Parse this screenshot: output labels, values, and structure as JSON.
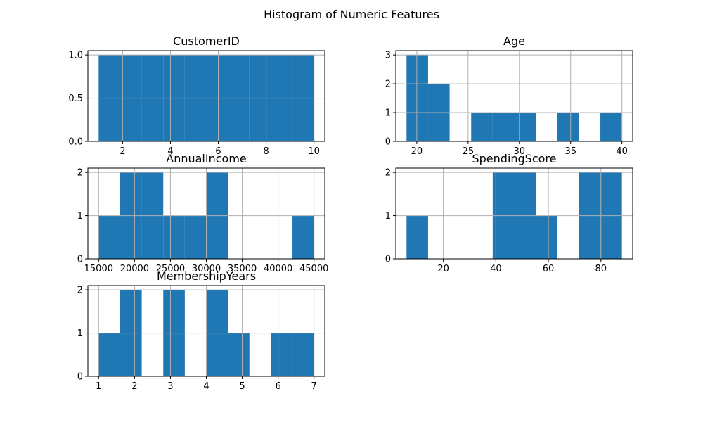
{
  "figure": {
    "title": "Histogram of Numeric Features"
  },
  "chart_data": [
    {
      "type": "bar",
      "title": "CustomerID",
      "bar_color": "#1f77b4",
      "bin_edges": [
        1.0,
        1.9,
        2.8,
        3.7,
        4.6,
        5.5,
        6.4,
        7.3,
        8.2,
        9.1,
        10.0
      ],
      "counts": [
        1,
        1,
        1,
        1,
        1,
        1,
        1,
        1,
        1,
        1
      ],
      "xlim": [
        0.55,
        10.45
      ],
      "ylim": [
        0,
        1.05
      ],
      "xticks": [
        2,
        4,
        6,
        8,
        10
      ],
      "xtick_labels": [
        "2",
        "4",
        "6",
        "8",
        "10"
      ],
      "yticks": [
        0.0,
        0.5,
        1.0
      ],
      "ytick_labels": [
        "0.0",
        "0.5",
        "1.0"
      ],
      "grid": true
    },
    {
      "type": "bar",
      "title": "Age",
      "bar_color": "#1f77b4",
      "bin_edges": [
        19.0,
        21.1,
        23.2,
        25.3,
        27.4,
        29.5,
        31.6,
        33.7,
        35.8,
        37.9,
        40.0
      ],
      "counts": [
        3,
        2,
        0,
        1,
        1,
        1,
        0,
        1,
        0,
        1
      ],
      "xlim": [
        17.95,
        41.05
      ],
      "ylim": [
        0,
        3.15
      ],
      "xticks": [
        20,
        25,
        30,
        35,
        40
      ],
      "xtick_labels": [
        "20",
        "25",
        "30",
        "35",
        "40"
      ],
      "yticks": [
        0,
        1,
        2,
        3
      ],
      "ytick_labels": [
        "0",
        "1",
        "2",
        "3"
      ],
      "grid": true
    },
    {
      "type": "bar",
      "title": "AnnualIncome",
      "bar_color": "#1f77b4",
      "bin_edges": [
        15000,
        18000,
        21000,
        24000,
        27000,
        30000,
        33000,
        36000,
        39000,
        42000,
        45000
      ],
      "counts": [
        1,
        2,
        2,
        1,
        1,
        2,
        0,
        0,
        0,
        1
      ],
      "xlim": [
        13500,
        46500
      ],
      "ylim": [
        0,
        2.1
      ],
      "xticks": [
        15000,
        20000,
        25000,
        30000,
        35000,
        40000,
        45000
      ],
      "xtick_labels": [
        "15000",
        "20000",
        "25000",
        "30000",
        "35000",
        "40000",
        "45000"
      ],
      "yticks": [
        0,
        1,
        2
      ],
      "ytick_labels": [
        "0",
        "1",
        "2"
      ],
      "grid": true
    },
    {
      "type": "bar",
      "title": "SpendingScore",
      "bar_color": "#1f77b4",
      "bin_edges": [
        6.0,
        14.2,
        22.4,
        30.6,
        38.8,
        47.0,
        55.2,
        63.4,
        71.6,
        79.8,
        88.0
      ],
      "counts": [
        1,
        0,
        0,
        0,
        2,
        2,
        1,
        0,
        2,
        2
      ],
      "xlim": [
        1.9,
        92.1
      ],
      "ylim": [
        0,
        2.1
      ],
      "xticks": [
        20,
        40,
        60,
        80
      ],
      "xtick_labels": [
        "20",
        "40",
        "60",
        "80"
      ],
      "yticks": [
        0,
        1,
        2
      ],
      "ytick_labels": [
        "0",
        "1",
        "2"
      ],
      "grid": true
    },
    {
      "type": "bar",
      "title": "MembershipYears",
      "bar_color": "#1f77b4",
      "bin_edges": [
        1.0,
        1.6,
        2.2,
        2.8,
        3.4,
        4.0,
        4.6,
        5.2,
        5.8,
        6.4,
        7.0
      ],
      "counts": [
        1,
        2,
        0,
        2,
        0,
        2,
        1,
        0,
        1,
        1
      ],
      "xlim": [
        0.7,
        7.3
      ],
      "ylim": [
        0,
        2.1
      ],
      "xticks": [
        1,
        2,
        3,
        4,
        5,
        6,
        7
      ],
      "xtick_labels": [
        "1",
        "2",
        "3",
        "4",
        "5",
        "6",
        "7"
      ],
      "yticks": [
        0,
        1,
        2
      ],
      "ytick_labels": [
        "0",
        "1",
        "2"
      ],
      "grid": true
    }
  ]
}
